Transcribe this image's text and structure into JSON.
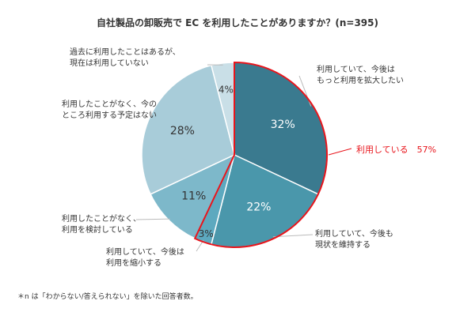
{
  "chart_data": {
    "type": "pie",
    "title": "自社製品の卸販売で EC を利用したことがありますか？(n=395)",
    "slices": [
      {
        "label": [
          "利用していて、今後は",
          "もっと利用を拡大したい"
        ],
        "value": 32,
        "value_label": "32%",
        "color": "#3a7a8f"
      },
      {
        "label": [
          "利用していて、今後も",
          "現状を維持する"
        ],
        "value": 22,
        "value_label": "22%",
        "color": "#4a97ab"
      },
      {
        "label": [
          "利用していて、今後は",
          "利用を縮小する"
        ],
        "value": 3,
        "value_label": "3%",
        "color": "#5da9bf"
      },
      {
        "label": [
          "利用したことがなく、",
          "利用を検討している"
        ],
        "value": 11,
        "value_label": "11%",
        "color": "#7db8ca"
      },
      {
        "label": [
          "利用したことがなく、今の",
          "ところ利用する予定はない"
        ],
        "value": 28,
        "value_label": "28%",
        "color": "#a8ccd9"
      },
      {
        "label": [
          "過去に利用したことはあるが、",
          "現在は利用していない"
        ],
        "value": 4,
        "value_label": "4%",
        "color": "#c9dfe7"
      }
    ],
    "highlight": {
      "label": "利用している　57%",
      "slices": [
        0,
        1,
        2
      ],
      "color": "#e8141b"
    }
  },
  "footnote": "＊n は「わからない/答えられない」を除いた回答者数。"
}
